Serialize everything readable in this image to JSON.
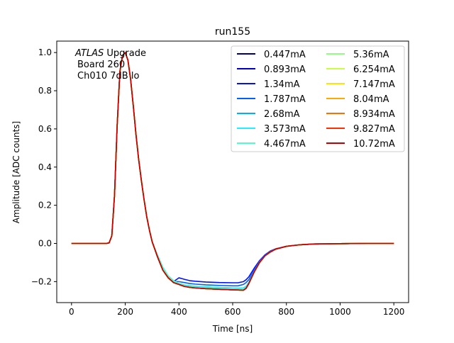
{
  "chart_data": {
    "type": "line",
    "title": "run155",
    "xlabel": "Time [ns]",
    "ylabel": "Amplitude [ADC counts]",
    "xlim": [
      -55,
      1255
    ],
    "ylim": [
      -0.31,
      1.06
    ],
    "xticks": [
      0,
      200,
      400,
      600,
      800,
      1000,
      1200
    ],
    "yticks": [
      -0.2,
      0.0,
      0.2,
      0.4,
      0.6,
      0.8,
      1.0
    ],
    "xtick_labels": [
      "0",
      "200",
      "400",
      "600",
      "800",
      "1000",
      "1200"
    ],
    "ytick_labels": [
      "−0.2",
      "0.0",
      "0.2",
      "0.4",
      "0.6",
      "0.8",
      "1.0"
    ],
    "grid": false,
    "legend_placement": "top-right",
    "legend_columns": 2,
    "annotation": {
      "lines": [
        "ATLAS Upgrade",
        "Board 260",
        "Ch010 7dB lo"
      ],
      "italic_word": "ATLAS"
    },
    "x": [
      0,
      100,
      130,
      140,
      150,
      160,
      170,
      180,
      190,
      200,
      210,
      220,
      230,
      240,
      250,
      260,
      270,
      280,
      290,
      300,
      320,
      340,
      360,
      380,
      400,
      420,
      440,
      460,
      500,
      550,
      600,
      620,
      640,
      650,
      660,
      680,
      700,
      720,
      740,
      760,
      800,
      850,
      900,
      1000,
      1100,
      1200
    ],
    "series": [
      {
        "name": "0.447mA",
        "color": "#00007f",
        "values": [
          0,
          0,
          0,
          0.003,
          0.04,
          0.25,
          0.62,
          0.9,
          0.985,
          1.0,
          0.96,
          0.86,
          0.72,
          0.57,
          0.44,
          0.33,
          0.23,
          0.14,
          0.07,
          0.01,
          -0.07,
          -0.14,
          -0.18,
          -0.205,
          -0.215,
          -0.225,
          -0.23,
          -0.233,
          -0.237,
          -0.24,
          -0.243,
          -0.244,
          -0.245,
          -0.235,
          -0.21,
          -0.15,
          -0.1,
          -0.065,
          -0.045,
          -0.03,
          -0.015,
          -0.007,
          -0.003,
          -0.001,
          0,
          0
        ]
      },
      {
        "name": "0.893mA",
        "color": "#0000c8",
        "values": [
          0,
          0,
          0,
          0.003,
          0.04,
          0.25,
          0.62,
          0.9,
          0.985,
          1.0,
          0.96,
          0.86,
          0.72,
          0.57,
          0.44,
          0.33,
          0.23,
          0.14,
          0.07,
          0.01,
          -0.07,
          -0.14,
          -0.18,
          -0.205,
          -0.215,
          -0.225,
          -0.23,
          -0.233,
          -0.237,
          -0.24,
          -0.243,
          -0.244,
          -0.245,
          -0.235,
          -0.21,
          -0.15,
          -0.1,
          -0.065,
          -0.045,
          -0.03,
          -0.015,
          -0.007,
          -0.003,
          -0.001,
          0,
          0
        ]
      },
      {
        "name": "1.34mA",
        "color": "#0010ff",
        "values": [
          0,
          0,
          0,
          0.003,
          0.04,
          0.25,
          0.62,
          0.9,
          0.985,
          1.0,
          0.96,
          0.86,
          0.72,
          0.57,
          0.44,
          0.33,
          0.23,
          0.14,
          0.07,
          0.01,
          -0.07,
          -0.14,
          -0.18,
          -0.2,
          -0.18,
          -0.188,
          -0.195,
          -0.198,
          -0.202,
          -0.205,
          -0.206,
          -0.206,
          -0.2,
          -0.19,
          -0.175,
          -0.13,
          -0.09,
          -0.06,
          -0.04,
          -0.028,
          -0.015,
          -0.007,
          -0.003,
          -0.001,
          0,
          0
        ]
      },
      {
        "name": "1.787mA",
        "color": "#0060ff",
        "values": [
          0,
          0,
          0,
          0.003,
          0.04,
          0.25,
          0.62,
          0.9,
          0.985,
          1.0,
          0.96,
          0.86,
          0.72,
          0.57,
          0.44,
          0.33,
          0.23,
          0.14,
          0.07,
          0.01,
          -0.07,
          -0.14,
          -0.18,
          -0.2,
          -0.2,
          -0.205,
          -0.21,
          -0.213,
          -0.217,
          -0.22,
          -0.222,
          -0.222,
          -0.215,
          -0.205,
          -0.19,
          -0.14,
          -0.095,
          -0.063,
          -0.043,
          -0.03,
          -0.015,
          -0.007,
          -0.003,
          -0.001,
          0,
          0
        ]
      },
      {
        "name": "2.68mA",
        "color": "#00b0ff",
        "values": [
          0,
          0,
          0,
          0.003,
          0.04,
          0.25,
          0.62,
          0.9,
          0.985,
          1.0,
          0.96,
          0.86,
          0.72,
          0.57,
          0.44,
          0.33,
          0.23,
          0.14,
          0.07,
          0.01,
          -0.07,
          -0.14,
          -0.18,
          -0.202,
          -0.21,
          -0.218,
          -0.222,
          -0.225,
          -0.228,
          -0.231,
          -0.233,
          -0.234,
          -0.233,
          -0.225,
          -0.205,
          -0.148,
          -0.099,
          -0.065,
          -0.044,
          -0.03,
          -0.015,
          -0.007,
          -0.003,
          -0.001,
          0,
          0
        ]
      },
      {
        "name": "3.573mA",
        "color": "#20f0ff",
        "values": [
          0,
          0,
          0,
          0.003,
          0.04,
          0.25,
          0.62,
          0.9,
          0.985,
          1.0,
          0.96,
          0.86,
          0.72,
          0.57,
          0.44,
          0.33,
          0.23,
          0.14,
          0.07,
          0.01,
          -0.06,
          -0.125,
          -0.17,
          -0.195,
          -0.21,
          -0.218,
          -0.222,
          -0.225,
          -0.228,
          -0.231,
          -0.233,
          -0.234,
          -0.233,
          -0.225,
          -0.205,
          -0.148,
          -0.099,
          -0.065,
          -0.044,
          -0.03,
          -0.015,
          -0.007,
          -0.003,
          -0.001,
          0,
          0
        ]
      },
      {
        "name": "4.467mA",
        "color": "#50ffc8",
        "values": [
          0,
          0,
          0,
          0.003,
          0.04,
          0.25,
          0.62,
          0.9,
          0.985,
          1.0,
          0.96,
          0.86,
          0.72,
          0.57,
          0.44,
          0.33,
          0.23,
          0.14,
          0.07,
          0.01,
          -0.065,
          -0.13,
          -0.173,
          -0.198,
          -0.212,
          -0.222,
          -0.227,
          -0.23,
          -0.234,
          -0.237,
          -0.239,
          -0.24,
          -0.24,
          -0.232,
          -0.21,
          -0.15,
          -0.1,
          -0.065,
          -0.045,
          -0.03,
          -0.015,
          -0.007,
          -0.003,
          -0.001,
          0,
          0
        ]
      },
      {
        "name": "5.36mA",
        "color": "#90ff80",
        "values": [
          0,
          0,
          0,
          0.003,
          0.04,
          0.25,
          0.62,
          0.9,
          0.985,
          1.0,
          0.96,
          0.86,
          0.72,
          0.57,
          0.44,
          0.33,
          0.23,
          0.14,
          0.07,
          0.01,
          -0.07,
          -0.14,
          -0.18,
          -0.205,
          -0.215,
          -0.225,
          -0.23,
          -0.233,
          -0.237,
          -0.24,
          -0.243,
          -0.244,
          -0.245,
          -0.235,
          -0.21,
          -0.15,
          -0.1,
          -0.065,
          -0.045,
          -0.03,
          -0.015,
          -0.007,
          -0.003,
          -0.001,
          0,
          0
        ]
      },
      {
        "name": "6.254mA",
        "color": "#c8ff40",
        "values": [
          0,
          0,
          0,
          0.003,
          0.04,
          0.25,
          0.62,
          0.9,
          0.985,
          1.0,
          0.96,
          0.86,
          0.72,
          0.57,
          0.44,
          0.33,
          0.23,
          0.14,
          0.07,
          0.01,
          -0.07,
          -0.14,
          -0.18,
          -0.205,
          -0.215,
          -0.225,
          -0.23,
          -0.233,
          -0.237,
          -0.24,
          -0.243,
          -0.244,
          -0.245,
          -0.235,
          -0.21,
          -0.15,
          -0.1,
          -0.065,
          -0.045,
          -0.03,
          -0.015,
          -0.007,
          -0.003,
          -0.001,
          0,
          0
        ]
      },
      {
        "name": "7.147mA",
        "color": "#ffe600",
        "values": [
          0,
          0,
          0,
          0.003,
          0.04,
          0.25,
          0.62,
          0.9,
          0.985,
          1.0,
          0.96,
          0.86,
          0.72,
          0.57,
          0.44,
          0.33,
          0.23,
          0.14,
          0.07,
          0.01,
          -0.07,
          -0.14,
          -0.18,
          -0.205,
          -0.215,
          -0.225,
          -0.23,
          -0.233,
          -0.237,
          -0.24,
          -0.243,
          -0.244,
          -0.245,
          -0.235,
          -0.21,
          -0.15,
          -0.1,
          -0.065,
          -0.045,
          -0.03,
          -0.015,
          -0.007,
          -0.003,
          -0.001,
          0,
          0
        ]
      },
      {
        "name": "8.04mA",
        "color": "#ffa800",
        "values": [
          0,
          0,
          0,
          0.003,
          0.04,
          0.25,
          0.62,
          0.9,
          0.985,
          1.0,
          0.96,
          0.86,
          0.72,
          0.57,
          0.44,
          0.33,
          0.23,
          0.14,
          0.07,
          0.01,
          -0.07,
          -0.14,
          -0.18,
          -0.205,
          -0.215,
          -0.225,
          -0.23,
          -0.233,
          -0.237,
          -0.24,
          -0.243,
          -0.244,
          -0.245,
          -0.235,
          -0.21,
          -0.15,
          -0.1,
          -0.065,
          -0.045,
          -0.03,
          -0.015,
          -0.007,
          -0.003,
          -0.001,
          0,
          0
        ]
      },
      {
        "name": "8.934mA",
        "color": "#ff6e00",
        "values": [
          0,
          0,
          0,
          0.003,
          0.04,
          0.25,
          0.62,
          0.9,
          0.985,
          1.0,
          0.96,
          0.86,
          0.72,
          0.57,
          0.44,
          0.33,
          0.23,
          0.14,
          0.07,
          0.01,
          -0.07,
          -0.14,
          -0.18,
          -0.205,
          -0.215,
          -0.225,
          -0.23,
          -0.233,
          -0.237,
          -0.24,
          -0.243,
          -0.244,
          -0.245,
          -0.235,
          -0.21,
          -0.15,
          -0.1,
          -0.065,
          -0.045,
          -0.03,
          -0.015,
          -0.007,
          -0.003,
          -0.001,
          0,
          0
        ]
      },
      {
        "name": "9.827mA",
        "color": "#ff3000",
        "values": [
          0,
          0,
          0,
          0.003,
          0.04,
          0.25,
          0.62,
          0.9,
          0.985,
          1.0,
          0.96,
          0.86,
          0.72,
          0.57,
          0.44,
          0.33,
          0.23,
          0.14,
          0.07,
          0.01,
          -0.07,
          -0.14,
          -0.18,
          -0.205,
          -0.215,
          -0.225,
          -0.23,
          -0.233,
          -0.237,
          -0.24,
          -0.243,
          -0.244,
          -0.245,
          -0.235,
          -0.21,
          -0.15,
          -0.1,
          -0.065,
          -0.045,
          -0.03,
          -0.015,
          -0.007,
          -0.003,
          -0.001,
          0,
          0
        ]
      },
      {
        "name": "10.72mA",
        "color": "#c00000",
        "values": [
          0,
          0,
          0,
          0.003,
          0.04,
          0.25,
          0.62,
          0.9,
          0.985,
          1.0,
          0.96,
          0.86,
          0.72,
          0.57,
          0.44,
          0.33,
          0.23,
          0.14,
          0.07,
          0.01,
          -0.07,
          -0.14,
          -0.18,
          -0.205,
          -0.215,
          -0.225,
          -0.23,
          -0.233,
          -0.237,
          -0.24,
          -0.243,
          -0.244,
          -0.245,
          -0.235,
          -0.21,
          -0.15,
          -0.1,
          -0.065,
          -0.045,
          -0.03,
          -0.015,
          -0.007,
          -0.003,
          -0.001,
          0,
          0
        ]
      }
    ]
  }
}
